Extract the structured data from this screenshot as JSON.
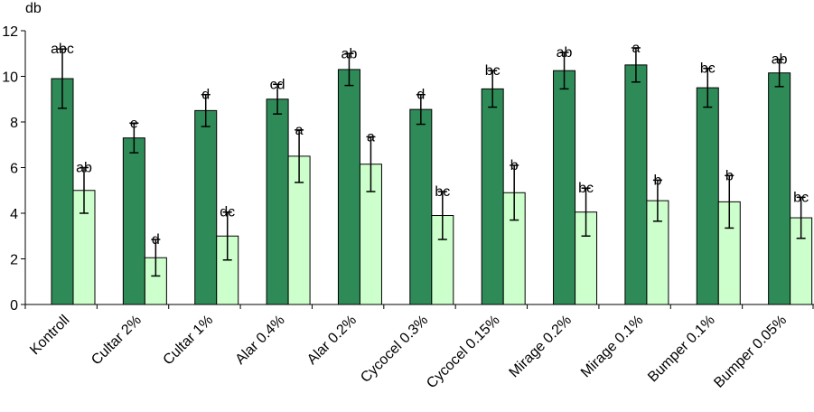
{
  "chart_data": {
    "type": "bar",
    "unit_label": "db",
    "categories": [
      "Kontroll",
      "Cultar 2%",
      "Cultar 1%",
      "Alar 0.4%",
      "Alar 0.2%",
      "Cycocel 0.3%",
      "Cycocel 0.15%",
      "Mirage 0.2%",
      "Mirage 0.1%",
      "Bumper 0.1%",
      "Bumper 0.05%"
    ],
    "series": [
      {
        "color": "#2e8b57",
        "values": [
          9.9,
          7.3,
          8.5,
          9.0,
          10.3,
          8.55,
          9.45,
          10.25,
          10.5,
          9.5,
          10.15
        ],
        "errors": [
          1.3,
          0.65,
          0.7,
          0.65,
          0.7,
          0.65,
          0.8,
          0.8,
          0.75,
          0.85,
          0.6
        ],
        "labels": [
          "abc",
          "e",
          "d",
          "cd",
          "ab",
          "d",
          "bc",
          "ab",
          "a",
          "bc",
          "ab"
        ]
      },
      {
        "color": "#ccffcc",
        "values": [
          5.0,
          2.05,
          3.0,
          6.5,
          6.15,
          3.9,
          4.9,
          4.05,
          4.55,
          4.5,
          3.8
        ],
        "errors": [
          1.0,
          0.8,
          1.05,
          1.15,
          1.2,
          1.05,
          1.2,
          1.05,
          0.9,
          1.15,
          0.9
        ],
        "labels": [
          "ab",
          "d",
          "dc",
          "a",
          "a",
          "bc",
          "b",
          "bc",
          "b",
          "b",
          "bc"
        ]
      }
    ],
    "ylim": [
      0,
      12
    ],
    "yticks": [
      "0",
      "2",
      "4",
      "6",
      "8",
      "10",
      "12"
    ],
    "grid": false,
    "legend": "none"
  }
}
